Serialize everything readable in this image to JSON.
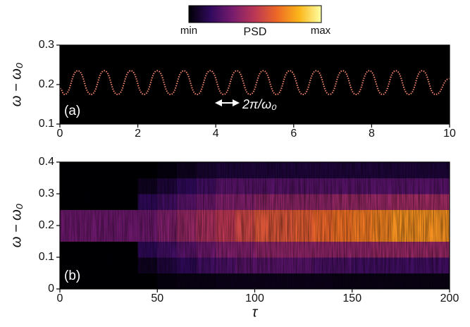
{
  "colorbar": {
    "label": "PSD",
    "min_label": "min",
    "max_label": "max",
    "colormap": [
      "#000004",
      "#320a5e",
      "#781c6d",
      "#bc3754",
      "#ed6925",
      "#fbb61a",
      "#fcffa4"
    ]
  },
  "chart_data": [
    {
      "type": "line",
      "panel_label": "(a)",
      "ylabel": "ω − ω₀",
      "annotation": "2π/ω₀",
      "xlim": [
        0,
        10
      ],
      "ylim": [
        0.1,
        0.3
      ],
      "xticks": [
        0,
        2,
        4,
        6,
        8,
        10
      ],
      "yticks": [
        0.1,
        0.2,
        0.3
      ],
      "background": "#000000",
      "series": [
        {
          "color": "#f4866a",
          "x": [
            0,
            0.12,
            0.46,
            0.8,
            1.14,
            1.48,
            1.82,
            2.16,
            2.5,
            2.84,
            3.18,
            3.52,
            3.86,
            4.2,
            4.54,
            4.88,
            5.22,
            5.56,
            5.9,
            6.24,
            6.58,
            6.92,
            7.26,
            7.6,
            7.94,
            8.28,
            8.62,
            8.96,
            9.3,
            9.64,
            10
          ],
          "values": [
            0.19,
            0.175,
            0.235,
            0.175,
            0.235,
            0.175,
            0.235,
            0.175,
            0.235,
            0.175,
            0.235,
            0.175,
            0.235,
            0.175,
            0.235,
            0.175,
            0.235,
            0.175,
            0.235,
            0.175,
            0.235,
            0.175,
            0.235,
            0.175,
            0.235,
            0.175,
            0.235,
            0.175,
            0.235,
            0.175,
            0.215
          ]
        }
      ]
    },
    {
      "type": "heatmap",
      "panel_label": "(b)",
      "ylabel": "ω − ω₀",
      "xlabel": "τ",
      "xlim": [
        0,
        200
      ],
      "ylim": [
        0,
        0.4
      ],
      "xticks": [
        0,
        50,
        100,
        150,
        200
      ],
      "yticks": [
        0,
        0.1,
        0.2,
        0.3,
        0.4
      ],
      "zlim": [
        0,
        1
      ],
      "xbins": [
        0,
        10,
        20,
        30,
        40,
        50,
        60,
        70,
        80,
        90,
        100,
        110,
        120,
        130,
        140,
        150,
        160,
        170,
        180,
        190,
        200
      ],
      "ybins": [
        0,
        0.05,
        0.1,
        0.15,
        0.2,
        0.25,
        0.3,
        0.35,
        0.4
      ],
      "z": [
        [
          0,
          0,
          0,
          0,
          0,
          0.02,
          0.03,
          0.03,
          0.04,
          0.04,
          0.04,
          0.04,
          0.04,
          0.04,
          0.03,
          0.03,
          0.03,
          0.03,
          0.03,
          0.03
        ],
        [
          0,
          0,
          0,
          0,
          0.05,
          0.1,
          0.15,
          0.2,
          0.22,
          0.25,
          0.25,
          0.25,
          0.25,
          0.22,
          0.22,
          0.2,
          0.2,
          0.2,
          0.2,
          0.2
        ],
        [
          0,
          0,
          0,
          0,
          0.15,
          0.2,
          0.25,
          0.3,
          0.35,
          0.35,
          0.38,
          0.38,
          0.38,
          0.38,
          0.38,
          0.38,
          0.4,
          0.4,
          0.4,
          0.4
        ],
        [
          0.3,
          0.3,
          0.3,
          0.3,
          0.3,
          0.35,
          0.4,
          0.45,
          0.5,
          0.55,
          0.6,
          0.6,
          0.62,
          0.65,
          0.68,
          0.7,
          0.72,
          0.75,
          0.75,
          0.75
        ],
        [
          0.3,
          0.3,
          0.3,
          0.3,
          0.3,
          0.35,
          0.4,
          0.45,
          0.5,
          0.55,
          0.6,
          0.6,
          0.62,
          0.65,
          0.68,
          0.7,
          0.72,
          0.75,
          0.75,
          0.75
        ],
        [
          0,
          0,
          0,
          0,
          0.15,
          0.2,
          0.25,
          0.3,
          0.35,
          0.35,
          0.38,
          0.38,
          0.38,
          0.38,
          0.4,
          0.4,
          0.4,
          0.42,
          0.42,
          0.42
        ],
        [
          0,
          0,
          0,
          0,
          0.05,
          0.1,
          0.15,
          0.2,
          0.25,
          0.25,
          0.25,
          0.25,
          0.25,
          0.25,
          0.25,
          0.25,
          0.25,
          0.25,
          0.25,
          0.25
        ],
        [
          0,
          0,
          0,
          0,
          0,
          0.02,
          0.05,
          0.08,
          0.1,
          0.1,
          0.1,
          0.1,
          0.1,
          0.1,
          0.1,
          0.1,
          0.1,
          0.1,
          0.1,
          0.1
        ]
      ]
    }
  ]
}
